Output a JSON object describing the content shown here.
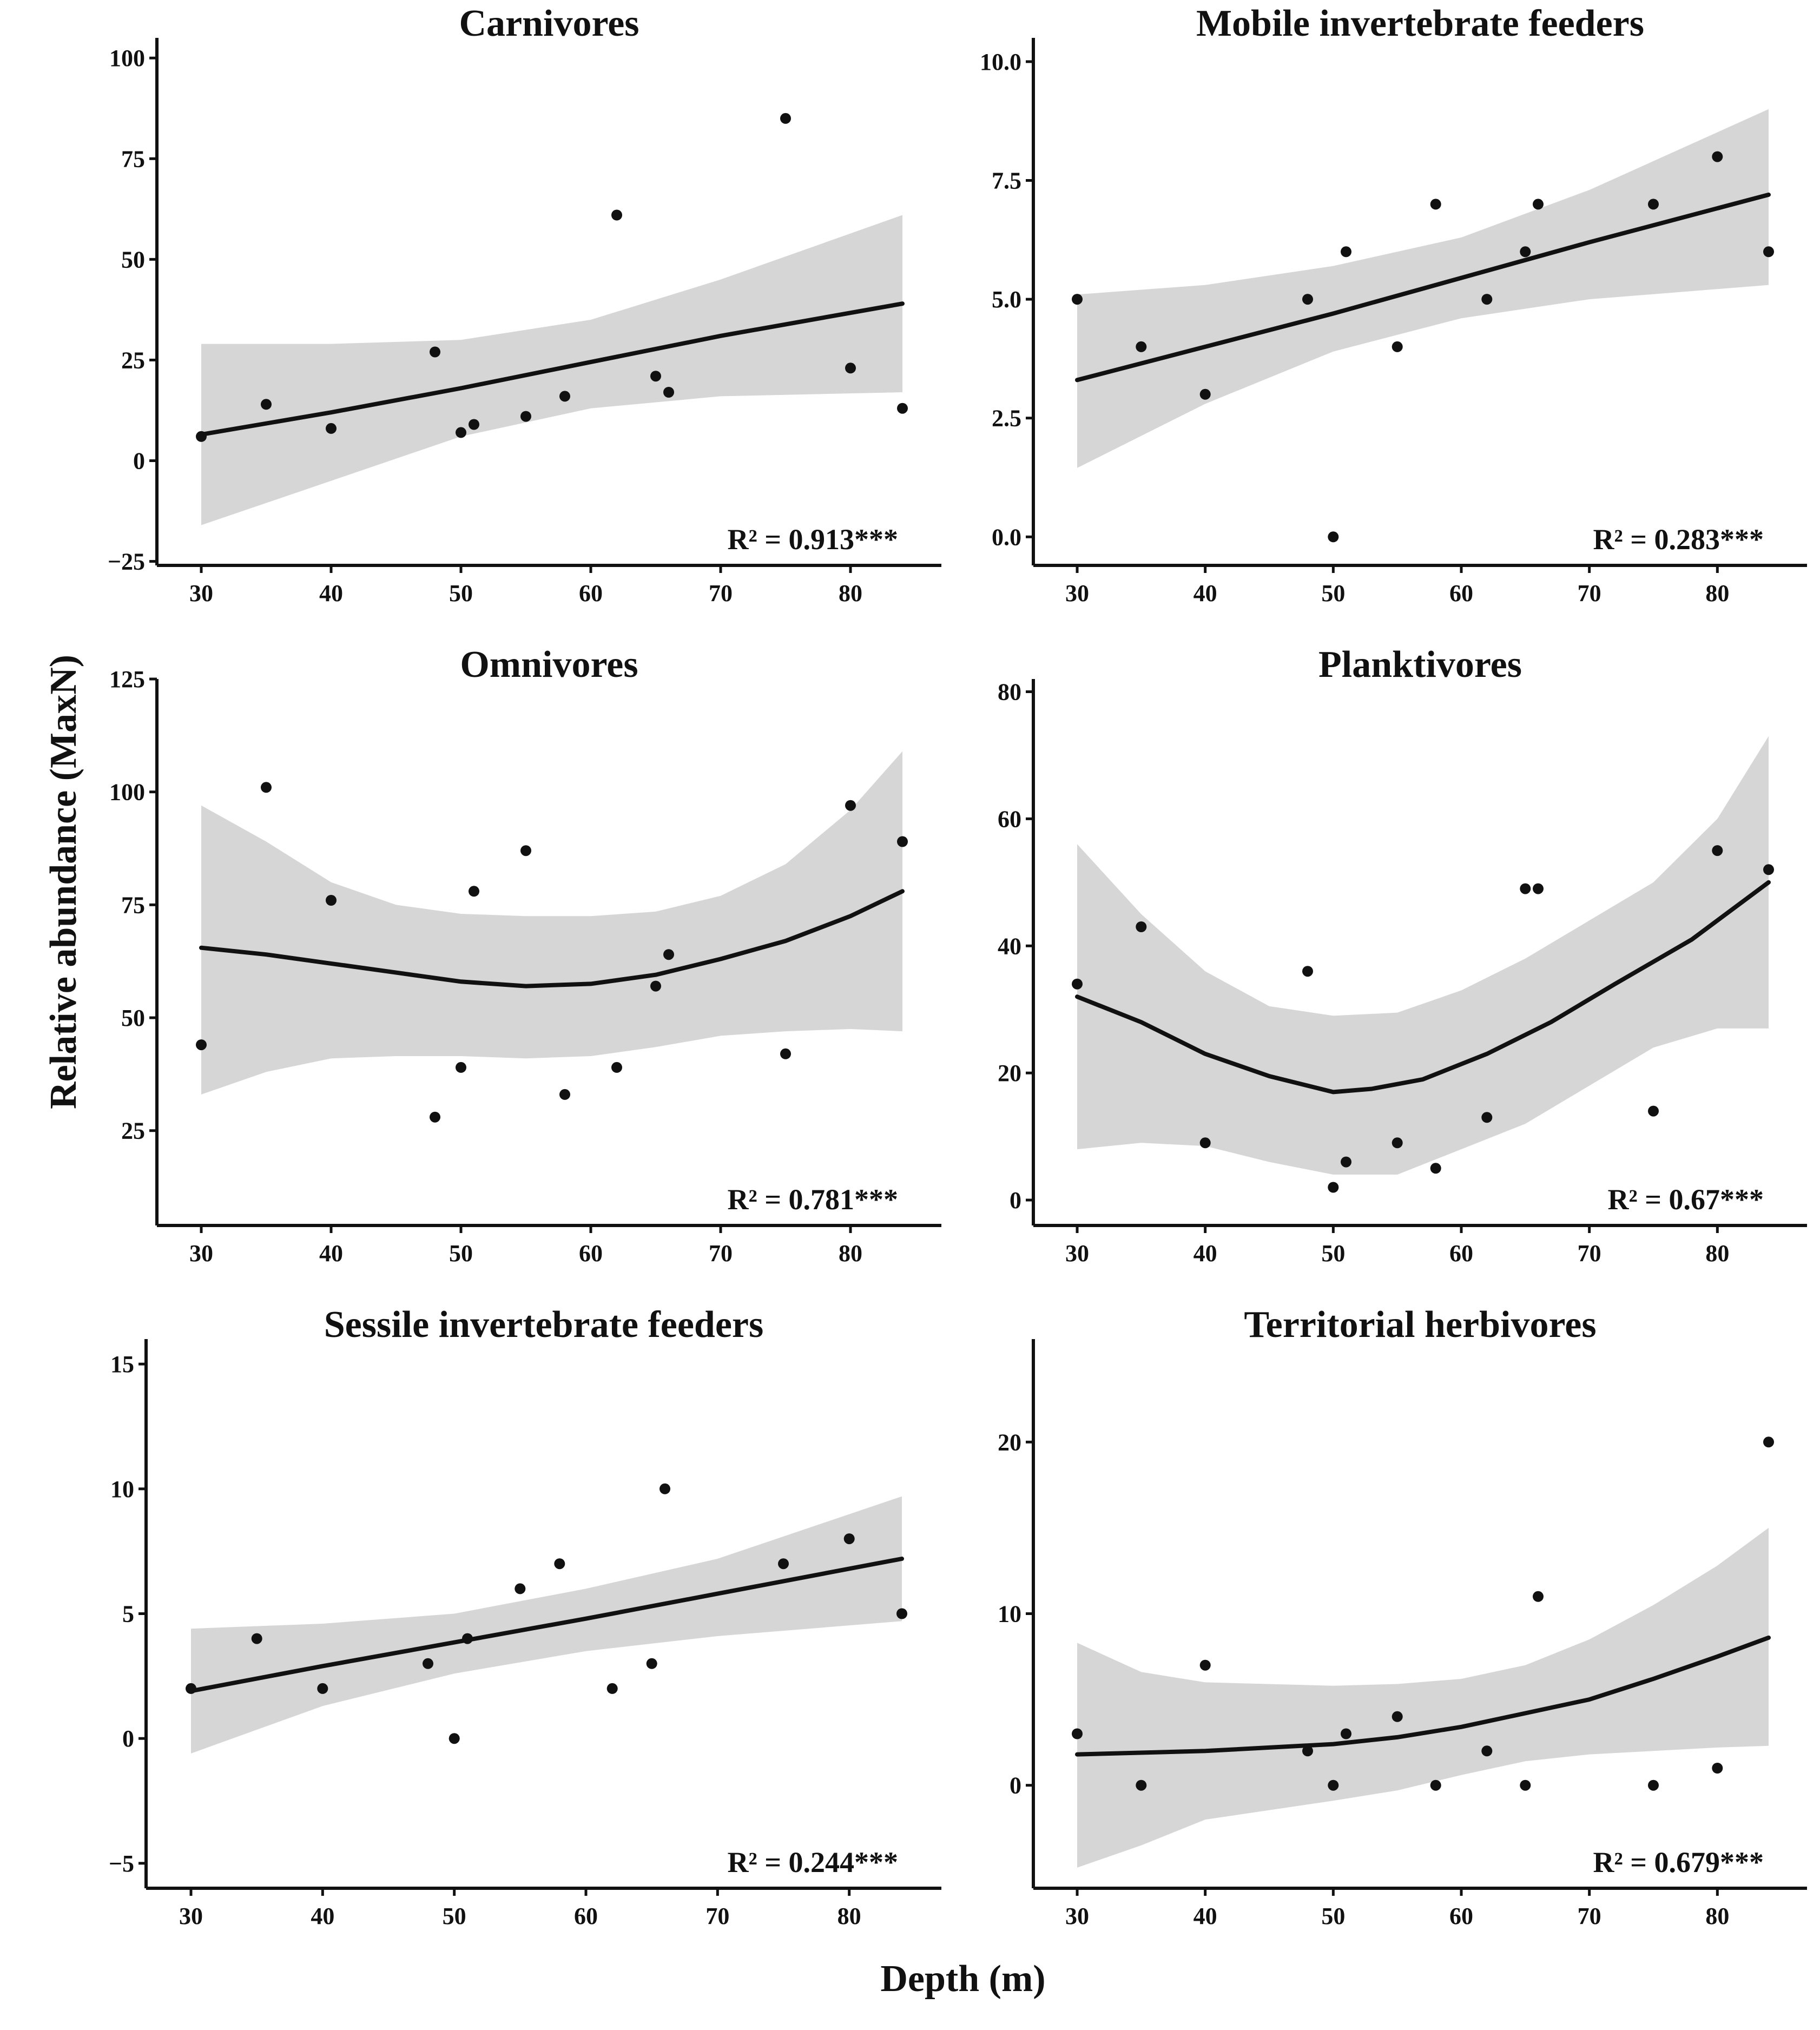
{
  "figure": {
    "x_title": "Depth (m)",
    "y_title": "Relative abundance (MaxN)"
  },
  "chart_data": [
    {
      "type": "scatter",
      "title": "Carnivores",
      "xlabel": "Depth (m)",
      "ylabel": "Relative abundance (MaxN)",
      "xlim": [
        27,
        87
      ],
      "ylim": [
        -26,
        105
      ],
      "x_ticks": [
        30,
        40,
        50,
        60,
        70,
        80
      ],
      "y_ticks": [
        -25,
        0,
        25,
        50,
        75,
        100
      ],
      "x_tick_labels": [
        "30",
        "40",
        "50",
        "60",
        "70",
        "80"
      ],
      "y_tick_labels": [
        "−25",
        "0",
        "25",
        "50",
        "75",
        "100"
      ],
      "r2_label": "R² = 0.913***",
      "points": [
        [
          30,
          6
        ],
        [
          35,
          14
        ],
        [
          40,
          8
        ],
        [
          48,
          27
        ],
        [
          50,
          7
        ],
        [
          51,
          9
        ],
        [
          55,
          11
        ],
        [
          58,
          16
        ],
        [
          62,
          61
        ],
        [
          65,
          21
        ],
        [
          66,
          17
        ],
        [
          75,
          85
        ],
        [
          80,
          23
        ],
        [
          84,
          13
        ]
      ],
      "fit": [
        [
          30,
          6.5
        ],
        [
          40,
          12
        ],
        [
          50,
          18
        ],
        [
          60,
          24.5
        ],
        [
          70,
          31
        ],
        [
          84,
          39
        ]
      ],
      "ci_upper": [
        [
          30,
          29
        ],
        [
          40,
          29
        ],
        [
          50,
          30
        ],
        [
          60,
          35
        ],
        [
          70,
          45
        ],
        [
          84,
          61
        ]
      ],
      "ci_lower": [
        [
          30,
          -16
        ],
        [
          40,
          -5
        ],
        [
          50,
          6
        ],
        [
          60,
          13
        ],
        [
          70,
          16
        ],
        [
          84,
          17
        ]
      ]
    },
    {
      "type": "scatter",
      "title": "Mobile invertebrate feeders",
      "xlabel": "Depth (m)",
      "ylabel": "Relative abundance (MaxN)",
      "xlim": [
        27,
        87
      ],
      "ylim": [
        -0.6,
        10.5
      ],
      "x_ticks": [
        30,
        40,
        50,
        60,
        70,
        80
      ],
      "y_ticks": [
        0,
        2.5,
        5,
        7.5,
        10
      ],
      "x_tick_labels": [
        "30",
        "40",
        "50",
        "60",
        "70",
        "80"
      ],
      "y_tick_labels": [
        "0.0",
        "2.5",
        "5.0",
        "7.5",
        "10.0"
      ],
      "r2_label": "R² = 0.283***",
      "points": [
        [
          30,
          5
        ],
        [
          35,
          4
        ],
        [
          40,
          3
        ],
        [
          48,
          5
        ],
        [
          50,
          0
        ],
        [
          51,
          6
        ],
        [
          55,
          4
        ],
        [
          58,
          7
        ],
        [
          62,
          5
        ],
        [
          65,
          6
        ],
        [
          66,
          7
        ],
        [
          75,
          7
        ],
        [
          80,
          8
        ],
        [
          84,
          6
        ]
      ],
      "fit": [
        [
          30,
          3.3
        ],
        [
          40,
          4.0
        ],
        [
          50,
          4.7
        ],
        [
          60,
          5.45
        ],
        [
          70,
          6.2
        ],
        [
          84,
          7.2
        ]
      ],
      "ci_upper": [
        [
          30,
          5.1
        ],
        [
          40,
          5.3
        ],
        [
          50,
          5.7
        ],
        [
          60,
          6.3
        ],
        [
          70,
          7.3
        ],
        [
          84,
          9.0
        ]
      ],
      "ci_lower": [
        [
          30,
          1.45
        ],
        [
          40,
          2.8
        ],
        [
          50,
          3.9
        ],
        [
          60,
          4.6
        ],
        [
          70,
          5.0
        ],
        [
          84,
          5.3
        ]
      ]
    },
    {
      "type": "scatter",
      "title": "Omnivores",
      "xlabel": "Depth (m)",
      "ylabel": "Relative abundance (MaxN)",
      "xlim": [
        27,
        87
      ],
      "ylim": [
        4,
        125
      ],
      "x_ticks": [
        30,
        40,
        50,
        60,
        70,
        80
      ],
      "y_ticks": [
        25,
        50,
        75,
        100,
        125
      ],
      "x_tick_labels": [
        "30",
        "40",
        "50",
        "60",
        "70",
        "80"
      ],
      "y_tick_labels": [
        "25",
        "50",
        "75",
        "100",
        "125"
      ],
      "r2_label": "R² = 0.781***",
      "points": [
        [
          30,
          44
        ],
        [
          35,
          101
        ],
        [
          40,
          76
        ],
        [
          48,
          28
        ],
        [
          50,
          39
        ],
        [
          51,
          78
        ],
        [
          55,
          87
        ],
        [
          58,
          33
        ],
        [
          62,
          39
        ],
        [
          65,
          57
        ],
        [
          66,
          64
        ],
        [
          75,
          42
        ],
        [
          80,
          97
        ],
        [
          84,
          89
        ]
      ],
      "fit": [
        [
          30,
          65.5
        ],
        [
          35,
          64
        ],
        [
          40,
          62
        ],
        [
          45,
          60
        ],
        [
          50,
          58
        ],
        [
          55,
          57
        ],
        [
          60,
          57.5
        ],
        [
          65,
          59.5
        ],
        [
          70,
          63
        ],
        [
          75,
          67
        ],
        [
          80,
          72.5
        ],
        [
          84,
          78
        ]
      ],
      "ci_upper": [
        [
          30,
          97
        ],
        [
          35,
          89
        ],
        [
          40,
          80
        ],
        [
          45,
          75
        ],
        [
          50,
          73
        ],
        [
          55,
          72.5
        ],
        [
          60,
          72.5
        ],
        [
          65,
          73.5
        ],
        [
          70,
          77
        ],
        [
          75,
          84
        ],
        [
          80,
          96
        ],
        [
          84,
          109
        ]
      ],
      "ci_lower": [
        [
          30,
          33
        ],
        [
          35,
          38
        ],
        [
          40,
          41
        ],
        [
          45,
          41.5
        ],
        [
          50,
          41.5
        ],
        [
          55,
          41
        ],
        [
          60,
          41.5
        ],
        [
          65,
          43.5
        ],
        [
          70,
          46
        ],
        [
          75,
          47
        ],
        [
          80,
          47.5
        ],
        [
          84,
          47
        ]
      ]
    },
    {
      "type": "scatter",
      "title": "Planktivores",
      "xlabel": "Depth (m)",
      "ylabel": "Relative abundance (MaxN)",
      "xlim": [
        27,
        87
      ],
      "ylim": [
        -4,
        82
      ],
      "x_ticks": [
        30,
        40,
        50,
        60,
        70,
        80
      ],
      "y_ticks": [
        0,
        20,
        40,
        60,
        80
      ],
      "x_tick_labels": [
        "30",
        "40",
        "50",
        "60",
        "70",
        "80"
      ],
      "y_tick_labels": [
        "0",
        "20",
        "40",
        "60",
        "80"
      ],
      "r2_label": "R² = 0.67***",
      "points": [
        [
          30,
          34
        ],
        [
          35,
          43
        ],
        [
          40,
          9
        ],
        [
          48,
          36
        ],
        [
          50,
          2
        ],
        [
          51,
          6
        ],
        [
          55,
          9
        ],
        [
          58,
          5
        ],
        [
          62,
          13
        ],
        [
          65,
          49
        ],
        [
          66,
          49
        ],
        [
          75,
          14
        ],
        [
          80,
          55
        ],
        [
          84,
          52
        ]
      ],
      "fit": [
        [
          30,
          32
        ],
        [
          35,
          28
        ],
        [
          40,
          23
        ],
        [
          45,
          19.5
        ],
        [
          50,
          17
        ],
        [
          53,
          17.5
        ],
        [
          57,
          19
        ],
        [
          62,
          23
        ],
        [
          67,
          28
        ],
        [
          72,
          34
        ],
        [
          78,
          41
        ],
        [
          84,
          50
        ]
      ],
      "ci_upper": [
        [
          30,
          56
        ],
        [
          35,
          45
        ],
        [
          40,
          36
        ],
        [
          45,
          30.5
        ],
        [
          50,
          29
        ],
        [
          55,
          29.5
        ],
        [
          60,
          33
        ],
        [
          65,
          38
        ],
        [
          70,
          44
        ],
        [
          75,
          50
        ],
        [
          80,
          60
        ],
        [
          84,
          73
        ]
      ],
      "ci_lower": [
        [
          30,
          8
        ],
        [
          35,
          9
        ],
        [
          40,
          8.5
        ],
        [
          45,
          6
        ],
        [
          50,
          4
        ],
        [
          55,
          4
        ],
        [
          60,
          8
        ],
        [
          65,
          12
        ],
        [
          70,
          18
        ],
        [
          75,
          24
        ],
        [
          80,
          27
        ],
        [
          84,
          27
        ]
      ]
    },
    {
      "type": "scatter",
      "title": "Sessile invertebrate feeders",
      "xlabel": "Depth (m)",
      "ylabel": "Relative abundance (MaxN)",
      "xlim": [
        27,
        87
      ],
      "ylim": [
        -6,
        16
      ],
      "x_ticks": [
        30,
        40,
        50,
        60,
        70,
        80
      ],
      "y_ticks": [
        -5,
        0,
        5,
        10,
        15
      ],
      "x_tick_labels": [
        "30",
        "40",
        "50",
        "60",
        "70",
        "80"
      ],
      "y_tick_labels": [
        "−5",
        "0",
        "5",
        "10",
        "15"
      ],
      "r2_label": "R² = 0.244***",
      "points": [
        [
          30,
          2
        ],
        [
          35,
          4
        ],
        [
          40,
          2
        ],
        [
          48,
          3
        ],
        [
          50,
          0
        ],
        [
          51,
          4
        ],
        [
          55,
          6
        ],
        [
          58,
          7
        ],
        [
          62,
          2
        ],
        [
          65,
          3
        ],
        [
          66,
          10
        ],
        [
          75,
          7
        ],
        [
          80,
          8
        ],
        [
          84,
          5
        ]
      ],
      "fit": [
        [
          30,
          1.9
        ],
        [
          40,
          2.9
        ],
        [
          50,
          3.85
        ],
        [
          60,
          4.8
        ],
        [
          70,
          5.8
        ],
        [
          84,
          7.2
        ]
      ],
      "ci_upper": [
        [
          30,
          4.4
        ],
        [
          40,
          4.6
        ],
        [
          50,
          5.0
        ],
        [
          60,
          6.0
        ],
        [
          70,
          7.2
        ],
        [
          84,
          9.7
        ]
      ],
      "ci_lower": [
        [
          30,
          -0.6
        ],
        [
          40,
          1.3
        ],
        [
          50,
          2.6
        ],
        [
          60,
          3.5
        ],
        [
          70,
          4.1
        ],
        [
          84,
          4.7
        ]
      ]
    },
    {
      "type": "scatter",
      "title": "Territorial herbivores",
      "xlabel": "Depth (m)",
      "ylabel": "Relative abundance (MaxN)",
      "xlim": [
        27,
        87
      ],
      "ylim": [
        -6,
        26
      ],
      "x_ticks": [
        30,
        40,
        50,
        60,
        70,
        80
      ],
      "y_ticks": [
        0,
        10,
        20
      ],
      "x_tick_labels": [
        "30",
        "40",
        "50",
        "60",
        "70",
        "80"
      ],
      "y_tick_labels": [
        "0",
        "10",
        "20"
      ],
      "r2_label": "R² = 0.679***",
      "points": [
        [
          30,
          3
        ],
        [
          35,
          0
        ],
        [
          40,
          7
        ],
        [
          48,
          2
        ],
        [
          50,
          0
        ],
        [
          51,
          3
        ],
        [
          55,
          4
        ],
        [
          58,
          0
        ],
        [
          62,
          2
        ],
        [
          65,
          0
        ],
        [
          66,
          11
        ],
        [
          75,
          0
        ],
        [
          80,
          1
        ],
        [
          84,
          20
        ]
      ],
      "fit": [
        [
          30,
          1.8
        ],
        [
          40,
          2.0
        ],
        [
          50,
          2.4
        ],
        [
          55,
          2.8
        ],
        [
          60,
          3.4
        ],
        [
          65,
          4.2
        ],
        [
          70,
          5.0
        ],
        [
          75,
          6.2
        ],
        [
          80,
          7.5
        ],
        [
          84,
          8.6
        ]
      ],
      "ci_upper": [
        [
          30,
          8.3
        ],
        [
          35,
          6.6
        ],
        [
          40,
          6.0
        ],
        [
          50,
          5.8
        ],
        [
          55,
          5.9
        ],
        [
          60,
          6.2
        ],
        [
          65,
          7.0
        ],
        [
          70,
          8.5
        ],
        [
          75,
          10.5
        ],
        [
          80,
          12.8
        ],
        [
          84,
          15
        ]
      ],
      "ci_lower": [
        [
          30,
          -4.8
        ],
        [
          35,
          -3.5
        ],
        [
          40,
          -2.0
        ],
        [
          50,
          -0.9
        ],
        [
          55,
          -0.3
        ],
        [
          60,
          0.6
        ],
        [
          65,
          1.4
        ],
        [
          70,
          1.8
        ],
        [
          75,
          2.0
        ],
        [
          80,
          2.2
        ],
        [
          84,
          2.3
        ]
      ]
    }
  ]
}
